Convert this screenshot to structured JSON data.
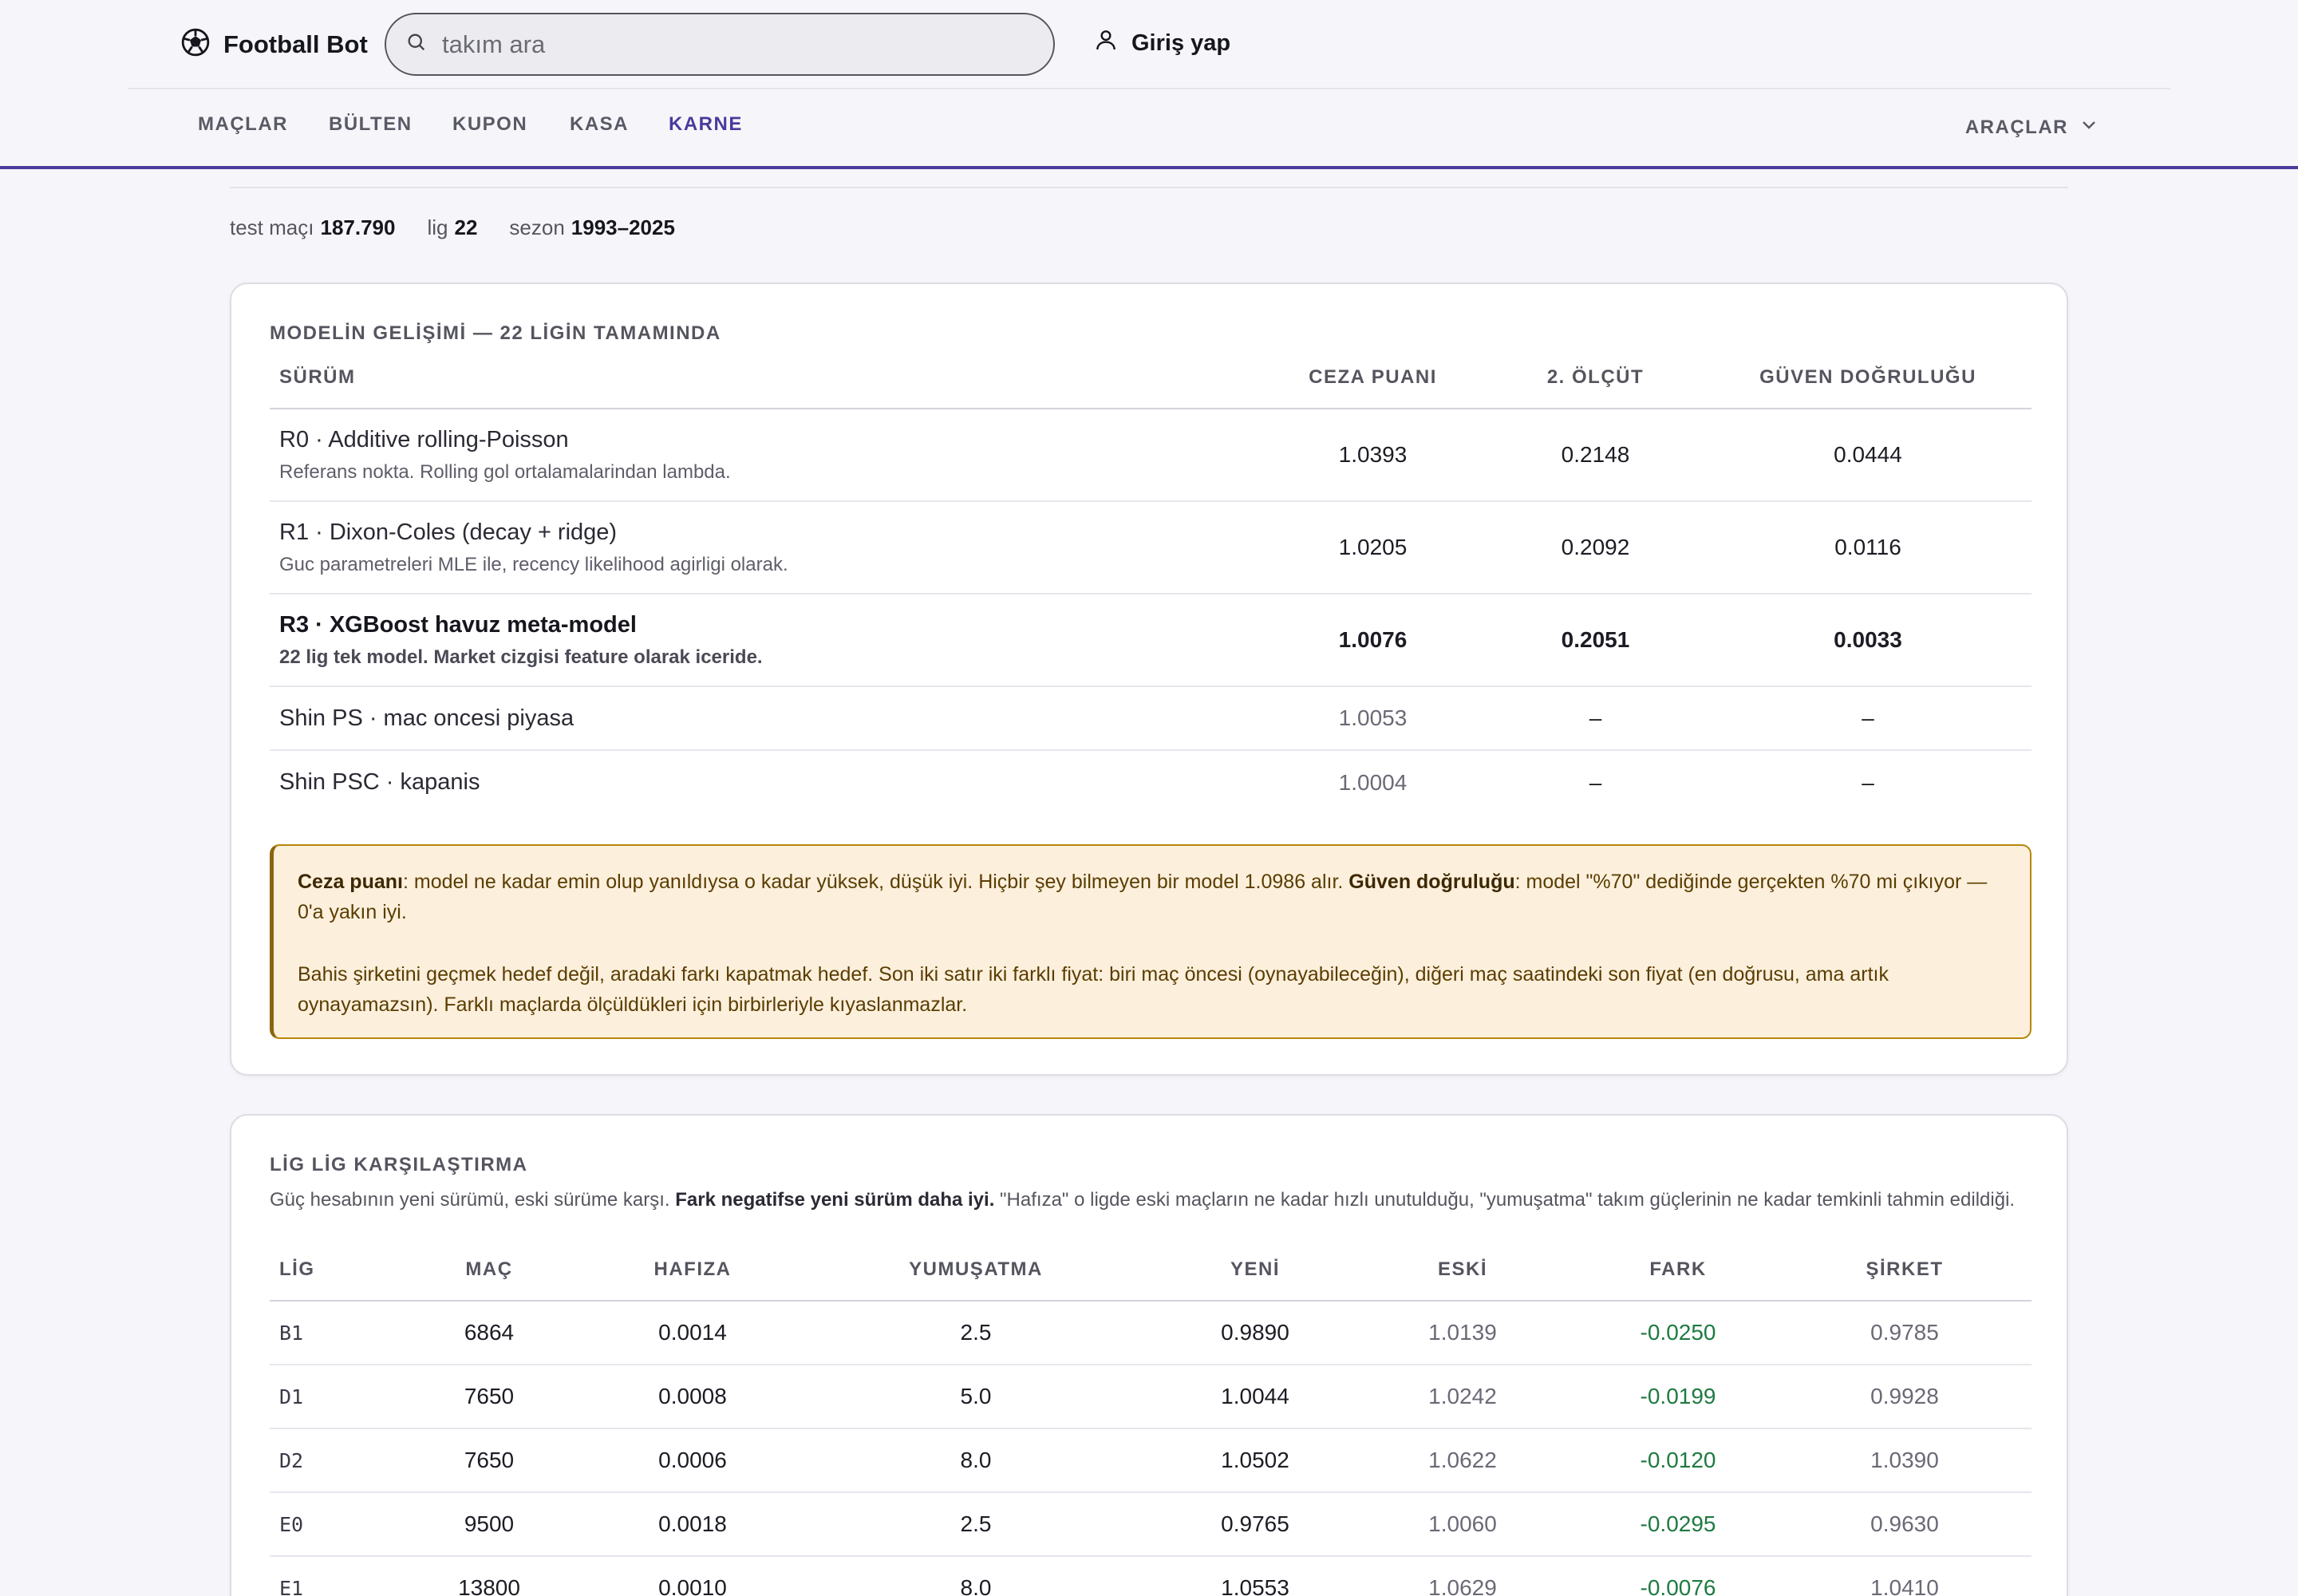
{
  "brand": {
    "name": "Football Bot",
    "icon": "football-icon"
  },
  "search": {
    "placeholder": "takım ara"
  },
  "login": {
    "label": "Giriş yap"
  },
  "nav": {
    "items": [
      "MAÇLAR",
      "BÜLTEN",
      "KUPON",
      "KASA",
      "KARNE"
    ],
    "active": "KARNE",
    "tools": "ARAÇLAR"
  },
  "stats": {
    "test_label": "test maçı",
    "test_value": "187.790",
    "league_label": "lig",
    "league_value": "22",
    "season_label": "sezon",
    "season_value": "1993–2025"
  },
  "evolution": {
    "title": "MODELİN GELİŞİMİ — 22 LİGİN TAMAMINDA",
    "headers": [
      "SÜRÜM",
      "CEZA PUANI",
      "2. ÖLÇÜT",
      "GÜVEN DOĞRULUĞU"
    ],
    "rows": [
      {
        "name": "R0 · Additive rolling-Poisson",
        "desc": "Referans nokta. Rolling gol ortalamalarindan lambda.",
        "ceza": "1.0393",
        "olcut": "0.2148",
        "guven": "0.0444"
      },
      {
        "name": "R1 · Dixon-Coles (decay + ridge)",
        "desc": "Guc parametreleri MLE ile, recency likelihood agirligi olarak.",
        "ceza": "1.0205",
        "olcut": "0.2092",
        "guven": "0.0116"
      },
      {
        "name": "R3 · XGBoost havuz meta-model",
        "desc": "22 lig tek model. Market cizgisi feature olarak iceride.",
        "ceza": "1.0076",
        "olcut": "0.2051",
        "guven": "0.0033"
      },
      {
        "name": "Shin PS · mac oncesi piyasa",
        "ceza": "1.0053",
        "olcut": "–",
        "guven": "–"
      },
      {
        "name": "Shin PSC · kapanis",
        "ceza": "1.0004",
        "olcut": "–",
        "guven": "–"
      }
    ],
    "note": {
      "p1_b1": "Ceza puanı",
      "p1_t1": ": model ne kadar emin olup yanıldıysa o kadar yüksek, düşük iyi. Hiçbir şey bilmeyen bir model 1.0986 alır. ",
      "p1_b2": "Güven doğruluğu",
      "p1_t2": ": model \"%70\" dediğinde gerçekten %70 mi çıkıyor — 0'a yakın iyi.",
      "p2": "Bahis şirketini geçmek hedef değil, aradaki farkı kapatmak hedef. Son iki satır iki farklı fiyat: biri maç öncesi (oynayabileceğin), diğeri maç saatindeki son fiyat (en doğrusu, ama artık oynayamazsın). Farklı maçlarda ölçüldükleri için birbirleriyle kıyaslanmazlar."
    }
  },
  "leagues": {
    "title": "LİG LİG KARŞILAŞTIRMA",
    "sub_t1": "Güç hesabının yeni sürümü, eski sürüme karşı. ",
    "sub_b": "Fark negatifse yeni sürüm daha iyi.",
    "sub_t2": " \"Hafıza\" o ligde eski maçların ne kadar hızlı unutulduğu, \"yumuşatma\" takım güçlerinin ne kadar temkinli tahmin edildiği.",
    "headers": [
      "LİG",
      "MAÇ",
      "HAFIZA",
      "YUMUŞATMA",
      "YENİ",
      "ESKİ",
      "FARK",
      "ŞİRKET"
    ],
    "rows": [
      {
        "lig": "B1",
        "mac": "6864",
        "hafiza": "0.0014",
        "yumusatma": "2.5",
        "yeni": "0.9890",
        "eski": "1.0139",
        "fark": "-0.0250",
        "sirket": "0.9785"
      },
      {
        "lig": "D1",
        "mac": "7650",
        "hafiza": "0.0008",
        "yumusatma": "5.0",
        "yeni": "1.0044",
        "eski": "1.0242",
        "fark": "-0.0199",
        "sirket": "0.9928"
      },
      {
        "lig": "D2",
        "mac": "7650",
        "hafiza": "0.0006",
        "yumusatma": "8.0",
        "yeni": "1.0502",
        "eski": "1.0622",
        "fark": "-0.0120",
        "sirket": "1.0390"
      },
      {
        "lig": "E0",
        "mac": "9500",
        "hafiza": "0.0018",
        "yumusatma": "2.5",
        "yeni": "0.9765",
        "eski": "1.0060",
        "fark": "-0.0295",
        "sirket": "0.9630"
      },
      {
        "lig": "E1",
        "mac": "13800",
        "hafiza": "0.0010",
        "yumusatma": "8.0",
        "yeni": "1.0553",
        "eski": "1.0629",
        "fark": "-0.0076",
        "sirket": "1.0410"
      }
    ]
  },
  "colors": {
    "accent": "#4a3a9c",
    "positive": "#1f7a42",
    "note_bg": "#fcefdc",
    "note_border": "#b8860b"
  }
}
